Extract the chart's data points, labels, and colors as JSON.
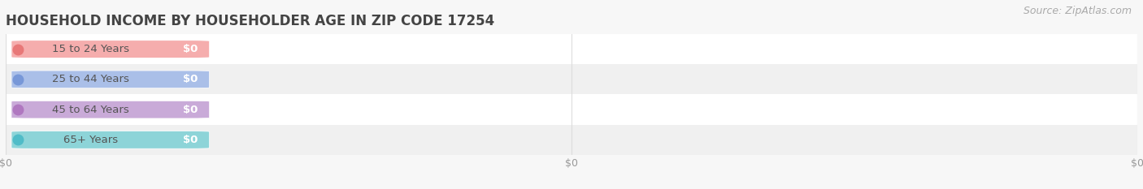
{
  "title": "HOUSEHOLD INCOME BY HOUSEHOLDER AGE IN ZIP CODE 17254",
  "source_text": "Source: ZipAtlas.com",
  "categories": [
    "15 to 24 Years",
    "25 to 44 Years",
    "45 to 64 Years",
    "65+ Years"
  ],
  "values": [
    0,
    0,
    0,
    0
  ],
  "bar_colors": [
    "#f5adad",
    "#aabfe8",
    "#c9aad8",
    "#8dd4d8"
  ],
  "dot_colors": [
    "#e87878",
    "#7898d8",
    "#b078c0",
    "#50bcc8"
  ],
  "background_color": "#f7f7f7",
  "row_colors": [
    "#ffffff",
    "#f0f0f0"
  ],
  "grid_color": "#dddddd",
  "tick_label_color": "#999999",
  "title_color": "#444444",
  "source_color": "#aaaaaa",
  "fig_width": 14.06,
  "fig_height": 2.33,
  "title_fontsize": 12,
  "label_fontsize": 9.5,
  "tick_fontsize": 9,
  "source_fontsize": 9
}
